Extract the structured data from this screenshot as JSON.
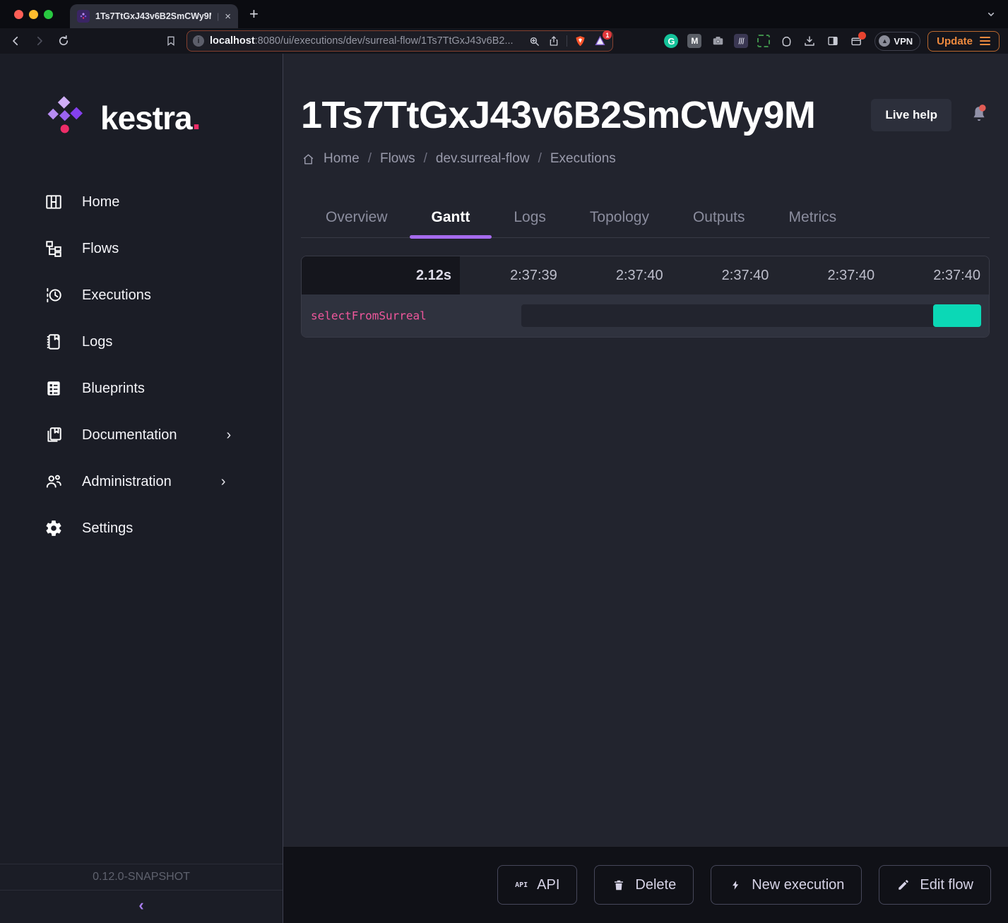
{
  "browser": {
    "tab": {
      "title": "1Ts7TtGxJ43v6B2SmCWy9M",
      "separator": "|",
      "close_glyph": "×",
      "new_tab_glyph": "+"
    },
    "url": {
      "host": "localhost",
      "rest": ":8080/ui/executions/dev/surreal-flow/1Ts7TtGxJ43v6B2..."
    },
    "shield_badge": "1",
    "grammarly_glyph": "G",
    "m_ext_glyph": "M",
    "vpn_label": "VPN",
    "update_label": "Update",
    "info_glyph": "i"
  },
  "sidebar": {
    "brand": "kestra",
    "brand_dot": ".",
    "items": [
      {
        "label": "Home"
      },
      {
        "label": "Flows"
      },
      {
        "label": "Executions"
      },
      {
        "label": "Logs"
      },
      {
        "label": "Blueprints"
      },
      {
        "label": "Documentation",
        "expandable": true
      },
      {
        "label": "Administration",
        "expandable": true
      },
      {
        "label": "Settings"
      }
    ],
    "expand_glyph": "›",
    "version": "0.12.0-SNAPSHOT",
    "collapse_glyph": "‹"
  },
  "header": {
    "title": "1Ts7TtGxJ43v6B2SmCWy9M",
    "live_help": "Live help",
    "breadcrumb": {
      "items": [
        "Home",
        "Flows",
        "dev.surreal-flow",
        "Executions"
      ],
      "separator": "/"
    }
  },
  "tabs": [
    {
      "label": "Overview"
    },
    {
      "label": "Gantt",
      "active": true
    },
    {
      "label": "Logs"
    },
    {
      "label": "Topology"
    },
    {
      "label": "Outputs"
    },
    {
      "label": "Metrics"
    }
  ],
  "chart_data": {
    "type": "gantt",
    "duration_label": "2.12s",
    "time_ticks": [
      "2:37:39",
      "2:37:40",
      "2:37:40",
      "2:37:40",
      "2:37:40"
    ],
    "rows": [
      {
        "task": "selectFromSurreal",
        "bar_color": "#0bd8b6",
        "bar_width_pct": 10.4,
        "bar_anchor": "right"
      }
    ],
    "colors": {
      "success": "#0bd8b6",
      "task_label": "#f0579c",
      "accent": "#a66bee"
    }
  },
  "actions": [
    {
      "label": "API"
    },
    {
      "label": "Delete"
    },
    {
      "label": "New execution"
    },
    {
      "label": "Edit flow"
    }
  ]
}
